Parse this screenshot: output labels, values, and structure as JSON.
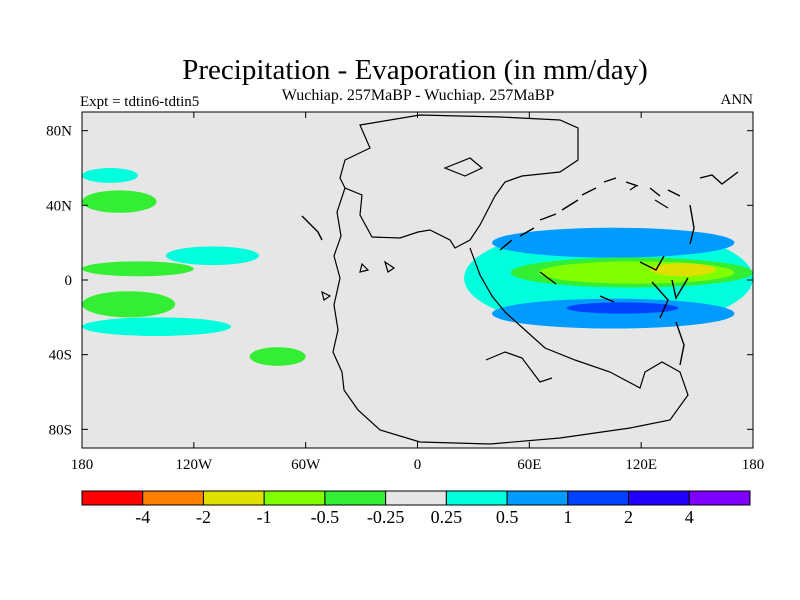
{
  "chart_data": {
    "type": "heatmap",
    "title": "Precipitation - Evaporation (in mm/day)",
    "subtitle": "Wuchiap. 257MaBP - Wuchiap. 257MaBP",
    "left_label": "Expt = tdtin6-tdtin5",
    "right_label": "ANN",
    "lon_range": [
      -180,
      180
    ],
    "lat_range": [
      -90,
      90
    ],
    "x_ticks": [
      {
        "value": -180,
        "label": "180"
      },
      {
        "value": -120,
        "label": "120W"
      },
      {
        "value": -60,
        "label": "60W"
      },
      {
        "value": 0,
        "label": "0"
      },
      {
        "value": 60,
        "label": "60E"
      },
      {
        "value": 120,
        "label": "120E"
      },
      {
        "value": 180,
        "label": "180"
      }
    ],
    "y_ticks": [
      {
        "value": 80,
        "label": "80N"
      },
      {
        "value": 40,
        "label": "40N"
      },
      {
        "value": 0,
        "label": "0"
      },
      {
        "value": -40,
        "label": "40S"
      },
      {
        "value": -80,
        "label": "80S"
      }
    ],
    "colorbar": {
      "colors": [
        "#ff0000",
        "#ff7f00",
        "#dfdf00",
        "#7fff00",
        "#33ee33",
        "#e6e6e6",
        "#00ffdd",
        "#009bff",
        "#0042ff",
        "#2200ff",
        "#7f00ff"
      ],
      "labels": [
        "-4",
        "-2",
        "-1",
        "-0.5",
        "-0.25",
        "0.25",
        "0.5",
        "1",
        "2",
        "4"
      ]
    },
    "anomaly_regions": [
      {
        "band": "-0.5 to -0.25",
        "lon": [
          -180,
          -140
        ],
        "lat": [
          36,
          48
        ]
      },
      {
        "band": "-0.5 to -0.25",
        "lon": [
          -180,
          -130
        ],
        "lat": [
          -20,
          -6
        ]
      },
      {
        "band": "-0.5 to -0.25",
        "lon": [
          -180,
          -120
        ],
        "lat": [
          2,
          10
        ]
      },
      {
        "band": "-0.5 to -0.25",
        "lon": [
          -90,
          -60
        ],
        "lat": [
          -46,
          -36
        ]
      },
      {
        "band": "0.25 to 0.5",
        "lon": [
          -180,
          -150
        ],
        "lat": [
          52,
          60
        ]
      },
      {
        "band": "0.25 to 0.5",
        "lon": [
          -135,
          -85
        ],
        "lat": [
          8,
          18
        ]
      },
      {
        "band": "0.25 to 0.5",
        "lon": [
          -180,
          -100
        ],
        "lat": [
          -30,
          -20
        ]
      },
      {
        "band": "0.25 to 0.5",
        "lon": [
          25,
          180
        ],
        "lat": [
          -26,
          28
        ]
      },
      {
        "band": "0.5 to 1",
        "lon": [
          40,
          170
        ],
        "lat": [
          12,
          28
        ]
      },
      {
        "band": "0.5 to 1",
        "lon": [
          40,
          170
        ],
        "lat": [
          -26,
          -10
        ]
      },
      {
        "band": "1 to 2",
        "lon": [
          80,
          140
        ],
        "lat": [
          -18,
          -12
        ]
      },
      {
        "band": "-0.5 to -0.25",
        "lon": [
          50,
          180
        ],
        "lat": [
          -4,
          12
        ]
      },
      {
        "band": "-1 to -0.5",
        "lon": [
          65,
          170
        ],
        "lat": [
          -2,
          10
        ]
      },
      {
        "band": "-2 to -1",
        "lon": [
          125,
          160
        ],
        "lat": [
          2,
          9
        ]
      }
    ]
  }
}
